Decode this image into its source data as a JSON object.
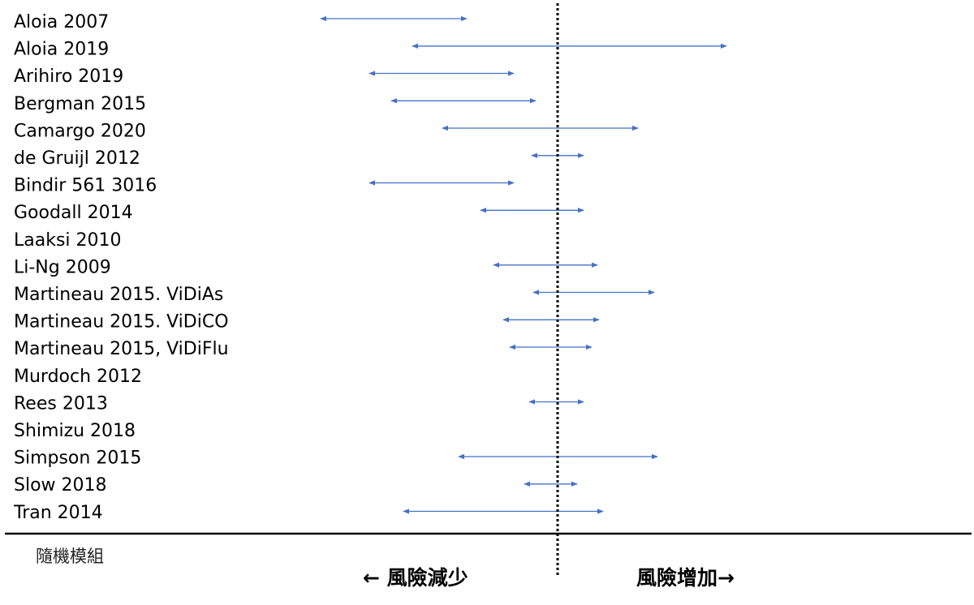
{
  "chart_data": {
    "type": "forest",
    "studies": [
      {
        "name": "Aloia 2007",
        "low": 395,
        "high": 575
      },
      {
        "name": "Aloia 2019",
        "low": 508,
        "high": 895
      },
      {
        "name": "Arihiro 2019",
        "low": 455,
        "high": 633
      },
      {
        "name": "Bergman 2015",
        "low": 482,
        "high": 660
      },
      {
        "name": "Camargo 2020",
        "low": 545,
        "high": 786
      },
      {
        "name": "de Gruijl 2012",
        "low": 655,
        "high": 719
      },
      {
        "name": "Bindir 561 3016",
        "low": 455,
        "high": 633
      },
      {
        "name": "Goodall 2014",
        "low": 592,
        "high": 719
      },
      {
        "name": "Laaksi 2010",
        "low": null,
        "high": null
      },
      {
        "name": "Li-Ng 2009",
        "low": 608,
        "high": 736
      },
      {
        "name": "Martineau 2015. ViDiAs",
        "low": 657,
        "high": 806
      },
      {
        "name": "Martineau 2015. ViDiCO",
        "low": 620,
        "high": 738
      },
      {
        "name": "Martineau 2015, ViDiFlu",
        "low": 628,
        "high": 729
      },
      {
        "name": "Murdoch 2012",
        "low": null,
        "high": null
      },
      {
        "name": "Rees 2013",
        "low": 652,
        "high": 719
      },
      {
        "name": "Shimizu 2018",
        "low": null,
        "high": null
      },
      {
        "name": "Simpson 2015",
        "low": 565,
        "high": 810
      },
      {
        "name": "Slow 2018",
        "low": 646,
        "high": 711
      },
      {
        "name": "Tran 2014",
        "low": 497,
        "high": 743
      }
    ],
    "reference_line": 687,
    "x_range": [
      0,
      1200
    ],
    "line_color": "#4472c4",
    "reference_style": "dotted"
  },
  "footer": {
    "note": "隨機模組",
    "left_direction": "← 風險減少",
    "right_direction": "風險增加→"
  }
}
